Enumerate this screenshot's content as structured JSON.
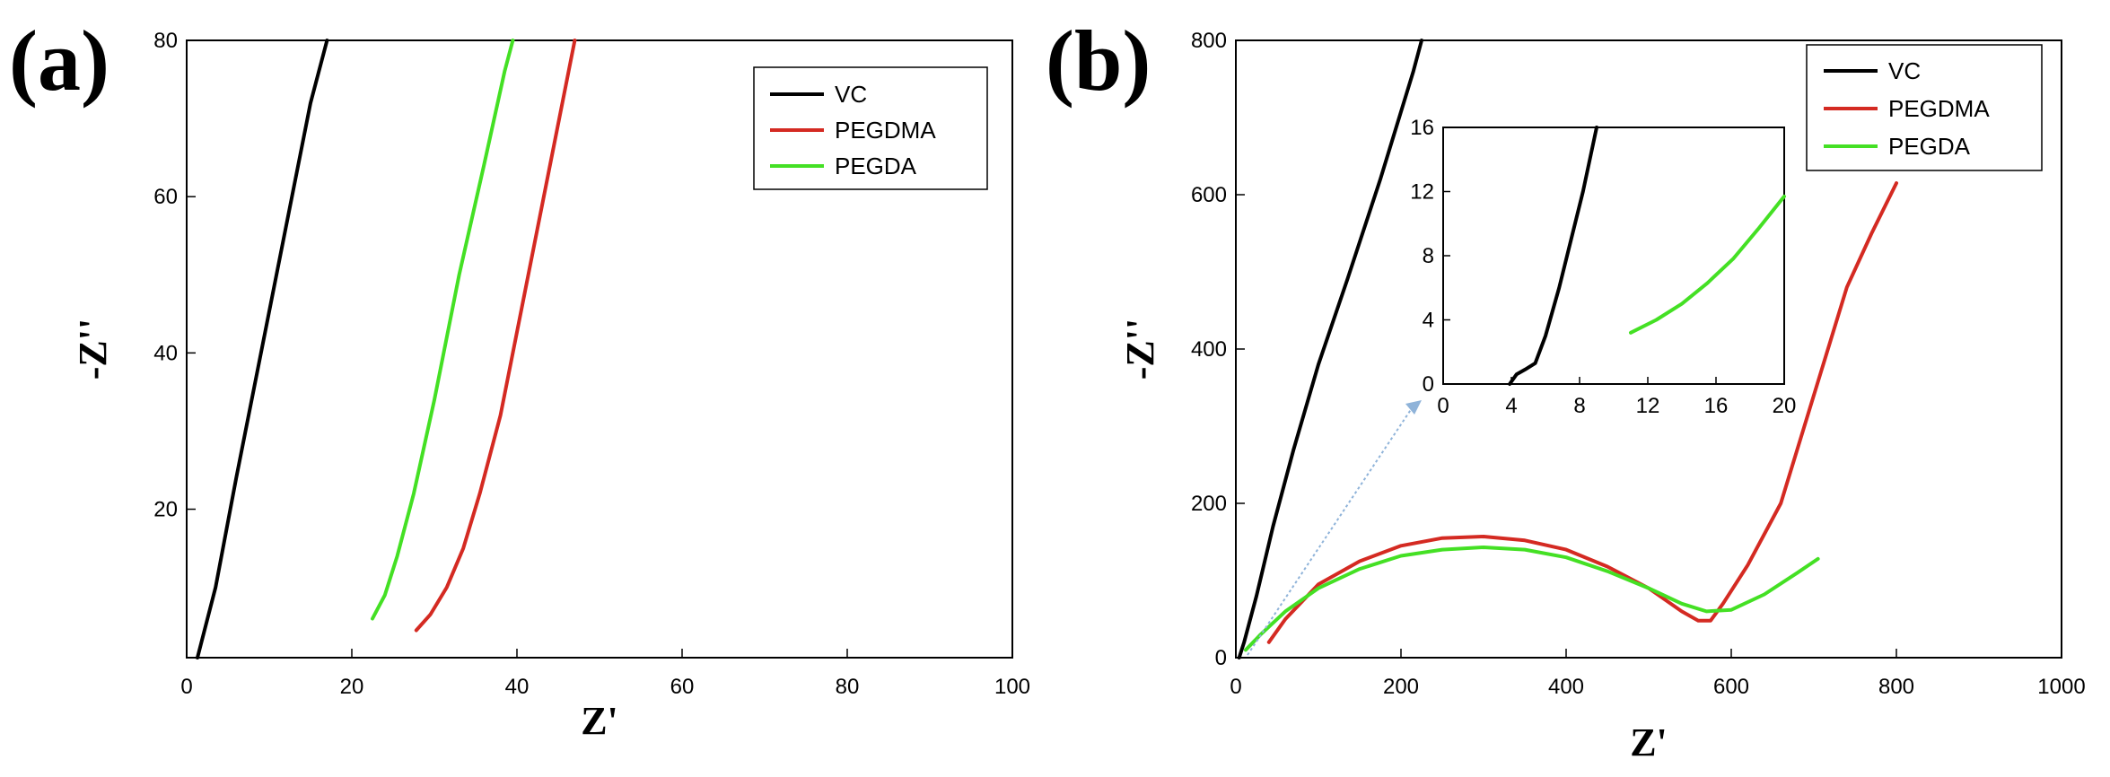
{
  "chart_data": [
    {
      "type": "line",
      "panel_label": "(a)",
      "title": "",
      "xlabel": "Z'",
      "ylabel": "-Z''",
      "xlim": [
        0,
        100
      ],
      "ylim": [
        1,
        80
      ],
      "xticks": [
        0,
        20,
        40,
        60,
        80,
        100
      ],
      "yticks": [
        20,
        40,
        60,
        80
      ],
      "legend_position": "top-right",
      "series": [
        {
          "name": "VC",
          "color": "#000000",
          "x": [
            1.3,
            3.5,
            6.0,
            9.0,
            12.0,
            15.0,
            17.0
          ],
          "y": [
            1,
            10,
            24,
            40,
            56,
            72,
            80
          ]
        },
        {
          "name": "PEGDMA",
          "color": "#d42a22",
          "x": [
            27.8,
            29.5,
            31.5,
            33.5,
            35.5,
            38.0,
            41.0,
            44.0,
            47.0
          ],
          "y": [
            4.5,
            6.5,
            10,
            15,
            22,
            32,
            48,
            64,
            80
          ]
        },
        {
          "name": "PEGDA",
          "color": "#44e024",
          "x": [
            22.5,
            24.0,
            25.5,
            27.5,
            30.0,
            33.0,
            36.0,
            38.5,
            39.5
          ],
          "y": [
            6,
            9,
            14,
            22,
            34,
            50,
            64,
            76,
            80
          ]
        }
      ]
    },
    {
      "type": "line",
      "panel_label": "(b)",
      "title": "",
      "xlabel": "Z'",
      "ylabel": "-Z''",
      "xlim": [
        0,
        1000
      ],
      "ylim": [
        0,
        800
      ],
      "xticks": [
        0,
        200,
        400,
        600,
        800,
        1000
      ],
      "yticks": [
        0,
        200,
        400,
        600,
        800
      ],
      "legend_position": "top-right",
      "series": [
        {
          "name": "VC",
          "color": "#000000",
          "x": [
            4,
            10,
            25,
            45,
            70,
            100,
            135,
            175,
            215,
            225
          ],
          "y": [
            0,
            20,
            80,
            170,
            270,
            380,
            490,
            620,
            760,
            800
          ]
        },
        {
          "name": "PEGDMA",
          "color": "#d42a22",
          "x": [
            40,
            60,
            100,
            150,
            200,
            250,
            300,
            350,
            400,
            450,
            500,
            540,
            560,
            575,
            590,
            620,
            660,
            700,
            740,
            770,
            800
          ],
          "y": [
            20,
            50,
            95,
            125,
            145,
            155,
            157,
            152,
            140,
            118,
            90,
            60,
            48,
            48,
            70,
            120,
            200,
            340,
            480,
            550,
            615
          ]
        },
        {
          "name": "PEGDA",
          "color": "#44e024",
          "x": [
            12,
            30,
            60,
            100,
            150,
            200,
            250,
            300,
            350,
            400,
            450,
            500,
            540,
            570,
            600,
            640,
            680,
            705
          ],
          "y": [
            10,
            30,
            60,
            90,
            115,
            132,
            140,
            143,
            140,
            130,
            112,
            90,
            70,
            60,
            62,
            82,
            110,
            128
          ]
        }
      ],
      "inset": {
        "xlim": [
          0,
          20
        ],
        "ylim": [
          0,
          16
        ],
        "xticks": [
          0,
          4,
          8,
          12,
          16,
          20
        ],
        "yticks": [
          0,
          4,
          8,
          12,
          16
        ],
        "series": [
          {
            "name": "VC",
            "color": "#000000",
            "x": [
              3.9,
              4.3,
              4.8,
              5.4,
              6.0,
              6.8,
              7.5,
              8.2,
              9.0
            ],
            "y": [
              0,
              0.6,
              0.9,
              1.3,
              3.0,
              6.0,
              9.0,
              12.0,
              16.0
            ]
          },
          {
            "name": "PEGDA",
            "color": "#44e024",
            "x": [
              11.0,
              12.5,
              14.0,
              15.5,
              17.0,
              18.5,
              20.0
            ],
            "y": [
              3.2,
              4.0,
              5.0,
              6.3,
              7.8,
              9.7,
              11.7
            ]
          }
        ]
      }
    }
  ]
}
